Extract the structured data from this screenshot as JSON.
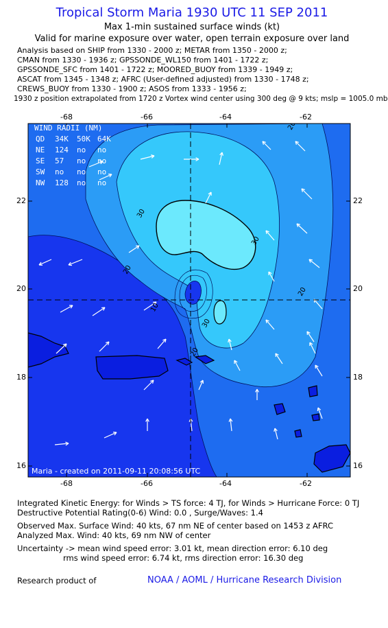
{
  "header": {
    "title": "Tropical Storm Maria 1930 UTC 11 SEP 2011",
    "subtitle1": "Max 1-min sustained surface winds (kt)",
    "subtitle2": "Valid for marine exposure over water, open terrain exposure over land"
  },
  "analysis_lines": [
    "Analysis based on SHIP from 1330 - 2000 z; METAR from 1350 - 2000 z;",
    "CMAN from 1330 - 1936 z; GPSSONDE_WL150 from 1401 - 1722 z;",
    "GPSSONDE_SFC from 1401 - 1722 z; MOORED_BUOY from 1339 - 1949 z;",
    "ASCAT from 1345 - 1348 z; AFRC (User-defined adjusted) from 1330 - 1748 z;",
    "CREWS_BUOY from 1330 - 1900 z; ASOS from 1333 - 1956 z;"
  ],
  "vortex_note": "1930 z position extrapolated from 1720 z Vortex wind center using 300 deg @ 9 kts; mslp = 1005.0 mb",
  "map": {
    "lon_ticks": [
      "-68",
      "-66",
      "-64",
      "-62"
    ],
    "lat_ticks": [
      "22",
      "20",
      "18",
      "16"
    ],
    "contour_labels": [
      "20",
      "30",
      "30",
      "20",
      "10",
      "20",
      "30",
      "20"
    ],
    "wind_radii": {
      "title": "WIND RADII (NM)",
      "header": [
        "QD",
        "34K",
        "50K",
        "64K"
      ],
      "rows": [
        [
          "NE",
          "124",
          "no",
          "no"
        ],
        [
          "SE",
          "57",
          "no",
          "no"
        ],
        [
          "SW",
          "no",
          "no",
          "no"
        ],
        [
          "NW",
          "128",
          "no",
          "no"
        ]
      ]
    },
    "created_label": "Maria - created on 2011-09-11 20:08:56 UTC",
    "colors": {
      "deep": "#1736ee",
      "level10": "#1e6cf0",
      "level20": "#2b9cf6",
      "level30": "#35c8fb",
      "level40": "#6ce9fd",
      "land": "#0a1ee0"
    }
  },
  "stats": {
    "ike": "Integrated Kinetic Energy:  for Winds > TS force: 4 TJ,  for Winds > Hurricane Force: 0 TJ",
    "dpr": "Destructive Potential Rating(0-6)   Wind: 0.0 , Surge/Waves: 1.4",
    "observed": "Observed Max. Surface Wind: 40 kts, 67 nm NE of center based on 1453 z AFRC",
    "analyzed": "Analyzed Max. Wind: 40 kts, 69 nm NW of center",
    "uncert1": "Uncertainty -> mean wind speed error: 3.01 kt,   mean direction error: 6.10 deg",
    "uncert2": "rms wind speed error: 6.74 kt,   rms direction error: 16.30 deg"
  },
  "footer": {
    "research_label": "Research product of",
    "credit": "NOAA / AOML / Hurricane Research Division"
  }
}
